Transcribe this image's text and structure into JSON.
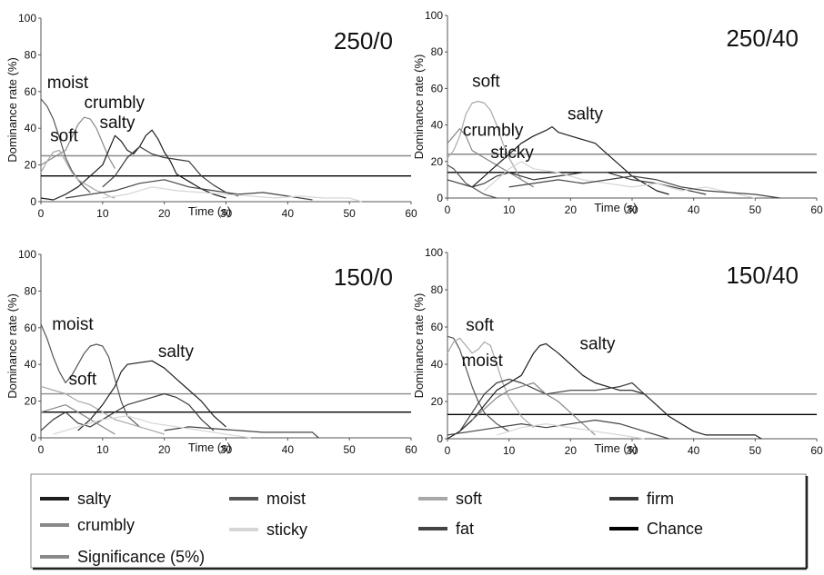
{
  "legend": [
    {
      "name": "salty",
      "color": "#1e1e1e"
    },
    {
      "name": "moist",
      "color": "#555555"
    },
    {
      "name": "soft",
      "color": "#a8a8a8"
    },
    {
      "name": "firm",
      "color": "#3a3a3a"
    },
    {
      "name": "crumbly",
      "color": "#888888"
    },
    {
      "name": "sticky",
      "color": "#d6d6d6"
    },
    {
      "name": "fat",
      "color": "#444444"
    },
    {
      "name": "Chance",
      "color": "#000000"
    },
    {
      "name": "Significance (5%)",
      "color": "#8a8a8a"
    }
  ],
  "chart_data": [
    {
      "type": "line",
      "title": "250/0",
      "xlabel": "Time (s)",
      "ylabel": "Dominance rate (%)",
      "xlim": [
        0,
        60
      ],
      "ylim": [
        0,
        100
      ],
      "xticks": [
        0,
        10,
        20,
        30,
        40,
        50,
        60
      ],
      "yticks": [
        0,
        20,
        40,
        60,
        80,
        100
      ],
      "chance": 14,
      "significance": 25,
      "annotations": [
        {
          "text": "moist",
          "x": 1,
          "y": 62
        },
        {
          "text": "crumbly",
          "x": 7,
          "y": 51
        },
        {
          "text": "salty",
          "x": 9.5,
          "y": 40
        },
        {
          "text": "soft",
          "x": 1.5,
          "y": 33
        }
      ],
      "series": [
        {
          "name": "moist",
          "x": [
            0,
            1,
            2,
            3,
            4,
            5,
            6,
            7,
            8
          ],
          "y": [
            56,
            52,
            45,
            35,
            24,
            17,
            12,
            8,
            5
          ]
        },
        {
          "name": "crumbly",
          "x": [
            0,
            2,
            4,
            5,
            6,
            7,
            8,
            9,
            10,
            11,
            12
          ],
          "y": [
            20,
            24,
            28,
            35,
            42,
            46,
            45,
            40,
            32,
            24,
            18
          ]
        },
        {
          "name": "salty",
          "x": [
            0,
            2,
            4,
            6,
            8,
            10,
            11,
            12,
            13,
            14,
            15,
            16,
            17,
            18,
            19,
            20,
            21,
            22,
            24,
            26,
            28,
            30
          ],
          "y": [
            2,
            1,
            4,
            8,
            14,
            20,
            28,
            36,
            33,
            28,
            26,
            30,
            36,
            39,
            34,
            27,
            22,
            15,
            11,
            7,
            4,
            2
          ]
        },
        {
          "name": "soft",
          "x": [
            0,
            1,
            2,
            3,
            4,
            5,
            6,
            7,
            8,
            9,
            10,
            11,
            12
          ],
          "y": [
            16,
            22,
            27,
            28,
            22,
            16,
            12,
            10,
            8,
            6,
            5,
            3,
            2
          ]
        },
        {
          "name": "firm",
          "x": [
            10,
            12,
            14,
            16,
            18,
            20,
            22,
            24,
            26,
            28,
            30,
            32
          ],
          "y": [
            8,
            14,
            24,
            30,
            26,
            24,
            23,
            22,
            14,
            9,
            5,
            3
          ]
        },
        {
          "name": "fat",
          "x": [
            4,
            8,
            12,
            16,
            20,
            24,
            28,
            32,
            36,
            40,
            44
          ],
          "y": [
            2,
            4,
            6,
            10,
            12,
            8,
            6,
            4,
            5,
            3,
            1
          ]
        },
        {
          "name": "sticky",
          "x": [
            10,
            14,
            18,
            22,
            26,
            30,
            34,
            38,
            42,
            46,
            50,
            52
          ],
          "y": [
            2,
            4,
            8,
            6,
            5,
            4,
            3,
            2,
            3,
            2,
            2,
            0
          ]
        }
      ]
    },
    {
      "type": "line",
      "title": "250/40",
      "xlabel": "Time (s)",
      "ylabel": "Dominance rate (%)",
      "xlim": [
        0,
        60
      ],
      "ylim": [
        0,
        100
      ],
      "xticks": [
        0,
        10,
        20,
        30,
        40,
        50,
        60
      ],
      "yticks": [
        0,
        20,
        40,
        60,
        80,
        100
      ],
      "chance": 14,
      "significance": 24,
      "annotations": [
        {
          "text": "soft",
          "x": 4,
          "y": 61
        },
        {
          "text": "crumbly",
          "x": 2.5,
          "y": 34
        },
        {
          "text": "salty",
          "x": 19.5,
          "y": 43
        },
        {
          "text": "sticky",
          "x": 7,
          "y": 22
        }
      ],
      "series": [
        {
          "name": "soft",
          "x": [
            0,
            1,
            2,
            3,
            4,
            5,
            6,
            7,
            8,
            9,
            10,
            11,
            12,
            14
          ],
          "y": [
            22,
            26,
            34,
            46,
            52,
            53,
            52,
            48,
            40,
            30,
            22,
            16,
            10,
            6
          ]
        },
        {
          "name": "crumbly",
          "x": [
            0,
            1,
            2,
            3,
            4,
            6,
            8,
            10,
            12,
            14
          ],
          "y": [
            30,
            34,
            38,
            34,
            26,
            22,
            18,
            14,
            10,
            6
          ]
        },
        {
          "name": "moist",
          "x": [
            0,
            1,
            2,
            3,
            4,
            5,
            6,
            8
          ],
          "y": [
            18,
            16,
            12,
            8,
            6,
            4,
            2,
            0
          ]
        },
        {
          "name": "salty",
          "x": [
            4,
            6,
            8,
            10,
            12,
            14,
            16,
            17,
            18,
            20,
            22,
            24,
            26,
            28,
            30,
            32,
            34,
            36
          ],
          "y": [
            6,
            12,
            18,
            24,
            30,
            34,
            37,
            39,
            36,
            34,
            32,
            30,
            24,
            18,
            12,
            8,
            4,
            2
          ]
        },
        {
          "name": "firm",
          "x": [
            0,
            2,
            4,
            6,
            8,
            10,
            14,
            18,
            22,
            26,
            30,
            34,
            38,
            42
          ],
          "y": [
            10,
            8,
            6,
            8,
            12,
            14,
            10,
            12,
            14,
            14,
            10,
            8,
            5,
            2
          ]
        },
        {
          "name": "sticky",
          "x": [
            6,
            8,
            10,
            12,
            14,
            18,
            22,
            26,
            30,
            34,
            38,
            42,
            46,
            50
          ],
          "y": [
            4,
            10,
            16,
            20,
            16,
            14,
            10,
            8,
            6,
            8,
            4,
            6,
            3,
            0
          ]
        },
        {
          "name": "fat",
          "x": [
            10,
            14,
            18,
            22,
            26,
            30,
            34,
            38,
            42,
            46,
            50,
            54
          ],
          "y": [
            6,
            8,
            10,
            8,
            10,
            12,
            10,
            6,
            4,
            3,
            2,
            0
          ]
        }
      ]
    },
    {
      "type": "line",
      "title": "150/0",
      "xlabel": "Time (s)",
      "ylabel": "Dominance rate (%)",
      "xlim": [
        0,
        60
      ],
      "ylim": [
        0,
        100
      ],
      "xticks": [
        0,
        10,
        20,
        30,
        40,
        50,
        60
      ],
      "yticks": [
        0,
        20,
        40,
        60,
        80,
        100
      ],
      "chance": 14,
      "significance": 24,
      "annotations": [
        {
          "text": "moist",
          "x": 1.8,
          "y": 59
        },
        {
          "text": "soft",
          "x": 4.5,
          "y": 29
        },
        {
          "text": "salty",
          "x": 19,
          "y": 44
        }
      ],
      "series": [
        {
          "name": "moist",
          "x": [
            0,
            1,
            2,
            3,
            4,
            5,
            6,
            7,
            8,
            9,
            10,
            11,
            12,
            13,
            14,
            16
          ],
          "y": [
            62,
            54,
            44,
            36,
            30,
            34,
            40,
            46,
            50,
            51,
            50,
            44,
            32,
            20,
            12,
            6
          ]
        },
        {
          "name": "soft",
          "x": [
            0,
            2,
            4,
            6,
            8,
            10,
            12,
            14,
            16,
            18,
            20
          ],
          "y": [
            28,
            26,
            24,
            20,
            18,
            14,
            10,
            8,
            6,
            4,
            2
          ]
        },
        {
          "name": "salty",
          "x": [
            6,
            8,
            10,
            12,
            13,
            14,
            16,
            18,
            19,
            20,
            22,
            24,
            26,
            28,
            30
          ],
          "y": [
            4,
            10,
            18,
            28,
            36,
            40,
            41,
            42,
            40,
            38,
            32,
            26,
            20,
            12,
            6
          ]
        },
        {
          "name": "firm",
          "x": [
            0,
            2,
            4,
            6,
            8,
            10,
            12,
            14,
            16,
            18,
            20,
            22,
            24,
            26,
            28
          ],
          "y": [
            4,
            10,
            14,
            8,
            6,
            10,
            14,
            18,
            20,
            22,
            24,
            22,
            18,
            10,
            4
          ]
        },
        {
          "name": "crumbly",
          "x": [
            0,
            2,
            4,
            6,
            8,
            10,
            12
          ],
          "y": [
            14,
            16,
            18,
            14,
            10,
            6,
            2
          ]
        },
        {
          "name": "fat",
          "x": [
            20,
            24,
            28,
            32,
            36,
            40,
            44,
            45
          ],
          "y": [
            4,
            6,
            5,
            4,
            3,
            3,
            3,
            0
          ]
        },
        {
          "name": "sticky",
          "x": [
            2,
            6,
            10,
            14,
            18,
            22,
            26,
            30,
            34
          ],
          "y": [
            2,
            6,
            10,
            12,
            8,
            6,
            4,
            2,
            0
          ]
        }
      ]
    },
    {
      "type": "line",
      "title": "150/40",
      "xlabel": "Time (s)",
      "ylabel": "Dominance rate (%)",
      "xlim": [
        0,
        60
      ],
      "ylim": [
        0,
        100
      ],
      "xticks": [
        0,
        10,
        20,
        30,
        40,
        50,
        60
      ],
      "yticks": [
        0,
        20,
        40,
        60,
        80,
        100
      ],
      "chance": 13,
      "significance": 24,
      "annotations": [
        {
          "text": "soft",
          "x": 3,
          "y": 58
        },
        {
          "text": "moist",
          "x": 2.3,
          "y": 39
        },
        {
          "text": "salty",
          "x": 21.5,
          "y": 48
        }
      ],
      "series": [
        {
          "name": "moist",
          "x": [
            0,
            1,
            2,
            3,
            4,
            5,
            6,
            8,
            10
          ],
          "y": [
            55,
            54,
            48,
            38,
            28,
            20,
            14,
            8,
            4
          ]
        },
        {
          "name": "soft",
          "x": [
            0,
            1,
            2,
            3,
            4,
            5,
            6,
            7,
            8,
            9,
            10,
            12,
            14
          ],
          "y": [
            46,
            52,
            54,
            50,
            46,
            48,
            52,
            50,
            40,
            30,
            22,
            12,
            6
          ]
        },
        {
          "name": "salty",
          "x": [
            0,
            2,
            4,
            6,
            8,
            10,
            12,
            14,
            15,
            16,
            18,
            20,
            22,
            24,
            26,
            28,
            30,
            32,
            34,
            36,
            38,
            40,
            42,
            44,
            46,
            48,
            50,
            51
          ],
          "y": [
            0,
            4,
            10,
            18,
            26,
            30,
            34,
            46,
            50,
            51,
            46,
            40,
            34,
            30,
            28,
            26,
            26,
            24,
            18,
            12,
            8,
            4,
            2,
            2,
            2,
            2,
            2,
            0
          ]
        },
        {
          "name": "firm",
          "x": [
            2,
            4,
            6,
            8,
            10,
            12,
            16,
            20,
            24,
            28,
            30,
            32,
            34
          ],
          "y": [
            4,
            14,
            24,
            30,
            32,
            30,
            24,
            26,
            26,
            28,
            30,
            24,
            18
          ]
        },
        {
          "name": "crumbly",
          "x": [
            4,
            6,
            8,
            10,
            12,
            14,
            16,
            18,
            20,
            22,
            24
          ],
          "y": [
            10,
            16,
            22,
            26,
            28,
            30,
            24,
            20,
            14,
            8,
            2
          ]
        },
        {
          "name": "fat",
          "x": [
            0,
            4,
            8,
            12,
            16,
            20,
            24,
            28,
            32,
            36
          ],
          "y": [
            2,
            4,
            6,
            8,
            6,
            8,
            10,
            8,
            4,
            0
          ]
        },
        {
          "name": "sticky",
          "x": [
            8,
            12,
            16,
            20,
            24,
            28,
            32
          ],
          "y": [
            2,
            6,
            8,
            6,
            4,
            2,
            0
          ]
        }
      ]
    }
  ]
}
